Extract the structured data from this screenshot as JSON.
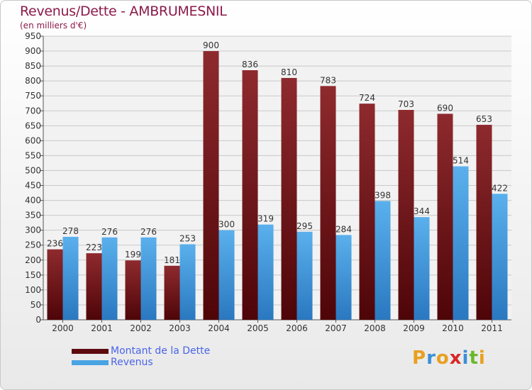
{
  "chart_data": {
    "type": "bar",
    "title": "Revenus/Dette - AMBRUMESNIL",
    "subtitle": "(en milliers d'€)",
    "categories": [
      "2000",
      "2001",
      "2002",
      "2003",
      "2004",
      "2005",
      "2006",
      "2007",
      "2008",
      "2009",
      "2010",
      "2011"
    ],
    "series": [
      {
        "name": "Montant de la Dette",
        "values": [
          236,
          223,
          199,
          181,
          900,
          836,
          810,
          783,
          724,
          703,
          690,
          653
        ],
        "color": "#7a1518"
      },
      {
        "name": "Revenus",
        "values": [
          278,
          276,
          276,
          253,
          300,
          319,
          295,
          284,
          398,
          344,
          514,
          422
        ],
        "color": "#4aa3e3"
      }
    ],
    "ylim": [
      0,
      950
    ],
    "yticks": [
      0,
      50,
      100,
      150,
      200,
      250,
      300,
      350,
      400,
      450,
      500,
      550,
      600,
      650,
      700,
      750,
      800,
      850,
      900,
      950
    ],
    "grid": true,
    "legend": "bottom-left"
  },
  "logo": {
    "letters": [
      {
        "ch": "P",
        "color": "#e8a020"
      },
      {
        "ch": "r",
        "color": "#3a8fd8"
      },
      {
        "ch": "o",
        "color": "#e8a020"
      },
      {
        "ch": "x",
        "color": "#d82828"
      },
      {
        "ch": "i",
        "color": "#3a8fd8"
      },
      {
        "ch": "t",
        "color": "#6ab82a"
      },
      {
        "ch": "i",
        "color": "#e8a020"
      }
    ]
  }
}
